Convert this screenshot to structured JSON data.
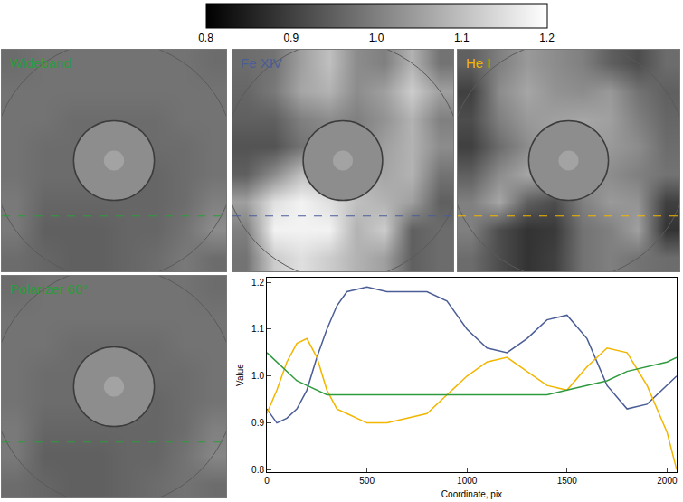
{
  "chart_data": [
    {
      "type": "colorbar",
      "range": [
        0.8,
        1.2
      ],
      "ticks": [
        0.8,
        0.9,
        {
          "value": 1,
          "label": "1.0"
        },
        1.1,
        1.2
      ]
    },
    {
      "type": "heatmap",
      "title": "Wideband",
      "color": "#2e9a3e",
      "xlim": [
        0,
        2048
      ],
      "ylim": [
        0,
        2048
      ],
      "tick_labels": false,
      "profile_row": 512,
      "x": [
        128,
        384,
        640,
        896,
        1152,
        1408,
        1664,
        1920
      ],
      "y": [
        128,
        384,
        640,
        896,
        1152,
        1408,
        1664,
        1920
      ],
      "z": [
        [
          0.97,
          0.96,
          0.95,
          0.95,
          0.96,
          0.97,
          0.99,
          0.97
        ],
        [
          0.99,
          0.95,
          0.95,
          0.95,
          0.96,
          0.96,
          0.98,
          1.02
        ],
        [
          0.99,
          0.96,
          0.96,
          0.96,
          0.96,
          0.96,
          0.97,
          1.0
        ],
        [
          0.98,
          0.97,
          0.97,
          0.97,
          0.96,
          0.96,
          0.97,
          0.98
        ],
        [
          0.98,
          0.97,
          0.97,
          0.97,
          0.97,
          0.97,
          0.97,
          0.98
        ],
        [
          0.98,
          0.98,
          0.97,
          0.97,
          0.97,
          0.97,
          0.98,
          0.98
        ],
        [
          0.98,
          0.98,
          0.98,
          0.98,
          0.98,
          0.98,
          0.98,
          0.98
        ],
        [
          0.97,
          0.98,
          0.98,
          0.98,
          0.98,
          0.98,
          0.98,
          0.97
        ]
      ]
    },
    {
      "type": "heatmap",
      "title": "Fe XIV",
      "color": "#4b5d97",
      "xlim": [
        0,
        2048
      ],
      "ylim": [
        0,
        2048
      ],
      "tick_labels": false,
      "profile_row": 512,
      "x": [
        128,
        384,
        640,
        896,
        1152,
        1408,
        1664,
        1920
      ],
      "y": [
        128,
        384,
        640,
        896,
        1152,
        1408,
        1664,
        1920
      ],
      "z": [
        [
          0.98,
          1.12,
          1.15,
          1.12,
          1.08,
          1.05,
          0.95,
          0.97
        ],
        [
          1.0,
          1.18,
          1.18,
          1.18,
          1.08,
          1.12,
          0.95,
          0.97
        ],
        [
          1.05,
          1.15,
          1.18,
          1.15,
          1.1,
          1.08,
          1.05,
          0.95
        ],
        [
          0.95,
          1.02,
          1.1,
          1.1,
          1.08,
          1.06,
          1.08,
          0.98
        ],
        [
          0.93,
          0.93,
          0.98,
          1.0,
          1.0,
          1.05,
          1.08,
          1.02
        ],
        [
          0.95,
          0.95,
          1.0,
          1.02,
          1.0,
          1.03,
          1.08,
          1.0
        ],
        [
          0.96,
          0.99,
          1.06,
          1.08,
          1.02,
          1.05,
          1.12,
          1.05
        ],
        [
          0.97,
          0.98,
          1.05,
          1.1,
          1.02,
          1.0,
          1.08,
          0.98
        ]
      ]
    },
    {
      "type": "heatmap",
      "title": "He I",
      "color": "#f2b600",
      "xlim": [
        0,
        2048
      ],
      "ylim": [
        0,
        2048
      ],
      "tick_labels": false,
      "profile_row": 512,
      "x": [
        128,
        384,
        640,
        896,
        1152,
        1408,
        1664,
        1920
      ],
      "y": [
        128,
        384,
        640,
        896,
        1152,
        1408,
        1664,
        1920
      ],
      "z": [
        [
          0.97,
          0.92,
          0.88,
          0.9,
          0.98,
          1.0,
          0.98,
          0.97
        ],
        [
          1.0,
          0.92,
          0.88,
          0.89,
          0.98,
          1.0,
          1.05,
          0.88
        ],
        [
          1.0,
          1.06,
          0.95,
          0.92,
          1.0,
          1.04,
          1.03,
          0.9
        ],
        [
          0.95,
          1.02,
          1.06,
          1.05,
          1.04,
          1.02,
          1.0,
          0.98
        ],
        [
          0.9,
          0.97,
          1.02,
          1.06,
          1.05,
          1.04,
          1.02,
          0.97
        ],
        [
          0.92,
          1.0,
          1.04,
          1.05,
          1.06,
          1.05,
          1.0,
          0.96
        ],
        [
          0.9,
          1.02,
          1.06,
          1.03,
          1.02,
          1.04,
          0.98,
          0.95
        ],
        [
          0.95,
          1.0,
          1.04,
          1.02,
          1.0,
          0.95,
          0.92,
          0.97
        ]
      ]
    },
    {
      "type": "heatmap",
      "title": "Polarizer 60°",
      "color": "#2e9a3e",
      "xlim": [
        0,
        2048
      ],
      "ylim": [
        0,
        2048
      ],
      "tick_labels": false,
      "profile_row": 512,
      "x": [
        128,
        384,
        640,
        896,
        1152,
        1408,
        1664,
        1920
      ],
      "y": [
        128,
        384,
        640,
        896,
        1152,
        1408,
        1664,
        1920
      ],
      "z": [
        [
          0.97,
          0.96,
          0.95,
          0.95,
          0.96,
          0.97,
          0.98,
          0.97
        ],
        [
          0.99,
          0.95,
          0.95,
          0.95,
          0.96,
          0.96,
          0.98,
          1.01
        ],
        [
          0.99,
          0.96,
          0.96,
          0.96,
          0.96,
          0.96,
          0.97,
          1.0
        ],
        [
          0.98,
          0.97,
          0.97,
          0.97,
          0.97,
          0.96,
          0.97,
          0.98
        ],
        [
          0.98,
          0.97,
          0.97,
          0.97,
          0.97,
          0.97,
          0.97,
          0.98
        ],
        [
          0.98,
          0.98,
          0.97,
          0.97,
          0.97,
          0.97,
          0.98,
          0.98
        ],
        [
          0.98,
          0.98,
          0.98,
          0.98,
          0.98,
          0.98,
          0.98,
          0.98
        ],
        [
          0.97,
          0.98,
          0.98,
          0.98,
          0.98,
          0.98,
          0.98,
          0.97
        ]
      ]
    },
    {
      "type": "line",
      "xlabel": "Coordinate, pix",
      "ylabel": "Value",
      "xlim": [
        0,
        2048
      ],
      "ylim": [
        0.795,
        1.21
      ],
      "xticks": [
        0,
        500,
        1000,
        1500,
        2000
      ],
      "yticks": [
        0.8,
        0.9,
        {
          "value": 1,
          "label": "1.0"
        },
        1.1,
        1.2
      ],
      "x": [
        0,
        50,
        100,
        150,
        200,
        250,
        300,
        350,
        400,
        500,
        600,
        700,
        800,
        900,
        1000,
        1100,
        1200,
        1300,
        1400,
        1500,
        1600,
        1700,
        1800,
        1900,
        2000,
        2048
      ],
      "series": [
        {
          "color": "#4b5d97",
          "values": [
            0.93,
            0.9,
            0.91,
            0.93,
            0.97,
            1.04,
            1.1,
            1.15,
            1.18,
            1.19,
            1.18,
            1.18,
            1.18,
            1.16,
            1.1,
            1.06,
            1.05,
            1.08,
            1.12,
            1.13,
            1.08,
            0.98,
            0.93,
            0.94,
            0.98,
            1.0
          ]
        },
        {
          "color": "#f2b600",
          "values": [
            0.92,
            0.97,
            1.03,
            1.07,
            1.08,
            1.04,
            0.97,
            0.93,
            0.92,
            0.9,
            0.9,
            0.91,
            0.92,
            0.96,
            1.0,
            1.03,
            1.04,
            1.01,
            0.98,
            0.97,
            1.02,
            1.06,
            1.05,
            0.98,
            0.88,
            0.8
          ]
        },
        {
          "color": "#2e9a3e",
          "values": [
            1.05,
            1.03,
            1.01,
            0.99,
            0.98,
            0.97,
            0.96,
            0.96,
            0.96,
            0.96,
            0.96,
            0.96,
            0.96,
            0.96,
            0.96,
            0.96,
            0.96,
            0.96,
            0.96,
            0.97,
            0.98,
            0.99,
            1.01,
            1.02,
            1.03,
            1.04
          ]
        }
      ]
    }
  ]
}
